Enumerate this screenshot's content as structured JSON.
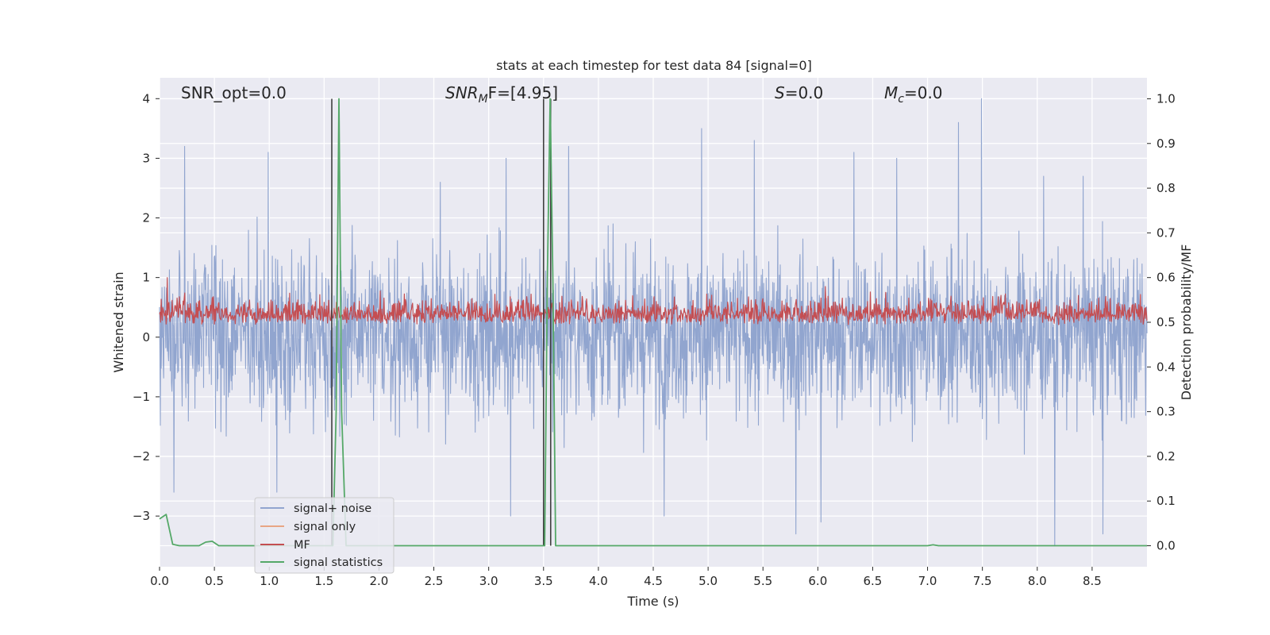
{
  "chart_data": {
    "type": "line",
    "title": "stats at each timestep for test data 84 [signal=0]",
    "xlabel": "Time (s)",
    "ylabel": "Whitened strain",
    "ylabel_right": "Detection probability/MF",
    "xlim": [
      0.0,
      9.0
    ],
    "ylim": [
      -3.85,
      4.35
    ],
    "ylim_right": [
      -0.047,
      1.047
    ],
    "grid": true,
    "legend_position": "lower left",
    "xticks": [
      0.0,
      0.5,
      1.0,
      1.5,
      2.0,
      2.5,
      3.0,
      3.5,
      4.0,
      4.5,
      5.0,
      5.5,
      6.0,
      6.5,
      7.0,
      7.5,
      8.0,
      8.5
    ],
    "xtick_labels": [
      "0.0",
      "0.5",
      "1.0",
      "1.5",
      "2.0",
      "2.5",
      "3.0",
      "3.5",
      "4.0",
      "4.5",
      "5.0",
      "5.5",
      "6.0",
      "6.5",
      "7.0",
      "7.5",
      "8.0",
      "8.5"
    ],
    "yticks_left": [
      4,
      3,
      2,
      1,
      0,
      -1,
      -2,
      -3
    ],
    "ytick_labels_left": [
      "4",
      "3",
      "2",
      "1",
      "0",
      "−1",
      "−2",
      "−3"
    ],
    "yticks_right": [
      1.0,
      0.9,
      0.8,
      0.7,
      0.6,
      0.5,
      0.4,
      0.3,
      0.2,
      0.1,
      0.0
    ],
    "ytick_labels_right": [
      "1.0",
      "0.9",
      "0.8",
      "0.7",
      "0.6",
      "0.5",
      "0.4",
      "0.3",
      "0.2",
      "0.1",
      "0.0"
    ],
    "annotations": {
      "snr_opt": "SNR_opt=0.0",
      "snr_mf_base": "SNR",
      "snr_mf_sub": "M",
      "snr_mf_rest": "F=[4.95]",
      "s_label": "S",
      "s_value": "=0.0",
      "mc_base": "M",
      "mc_sub": "c",
      "mc_value": "=0.0"
    },
    "series": [
      {
        "name": "signal+ noise",
        "color": "#91a5cf",
        "axis": "left",
        "description_values": {
          "min": -3.5,
          "max": 4.0,
          "typical_abs": 1.3
        },
        "peaks": [
          [
            0.23,
            3.2
          ],
          [
            0.99,
            3.1
          ],
          [
            2.56,
            2.6
          ],
          [
            3.16,
            3.0
          ],
          [
            3.73,
            3.2
          ],
          [
            4.94,
            3.5
          ],
          [
            5.42,
            3.3
          ],
          [
            6.33,
            3.1
          ],
          [
            6.72,
            3.0
          ],
          [
            7.28,
            3.6
          ],
          [
            7.49,
            4.0
          ],
          [
            8.06,
            2.7
          ],
          [
            8.42,
            2.7
          ]
        ],
        "troughs": [
          [
            0.13,
            -2.6
          ],
          [
            1.07,
            -2.6
          ],
          [
            3.2,
            -3.0
          ],
          [
            4.6,
            -3.0
          ],
          [
            5.8,
            -3.3
          ],
          [
            6.03,
            -3.1
          ],
          [
            8.16,
            -3.5
          ],
          [
            8.6,
            -3.3
          ]
        ]
      },
      {
        "name": "signal only",
        "color": "#e8a584",
        "axis": "left",
        "values": []
      },
      {
        "name": "MF",
        "color": "#c44e52",
        "axis": "right",
        "description_values": {
          "baseline": 0.5,
          "low": 0.48,
          "high": 0.58
        },
        "peaks": [
          [
            0.07,
            0.6
          ],
          [
            6.07,
            0.58
          ]
        ]
      },
      {
        "name": "signal statistics",
        "color": "#55a868",
        "axis": "right",
        "x": [
          0.0,
          0.06,
          0.12,
          0.18,
          0.36,
          0.42,
          0.48,
          0.54,
          1.55,
          1.58,
          1.61,
          1.635,
          1.66,
          1.7,
          3.49,
          3.51,
          3.535,
          3.56,
          3.585,
          3.61,
          3.64,
          7.0,
          7.05,
          7.1,
          9.0
        ],
        "y": [
          0.06,
          0.07,
          0.003,
          0.0,
          0.0,
          0.008,
          0.01,
          0.0,
          0.0,
          0.0,
          0.3,
          1.0,
          0.3,
          0.0,
          0.0,
          0.0,
          0.6,
          1.0,
          0.6,
          0.0,
          0.0,
          0.0,
          0.002,
          0.0,
          0.0
        ]
      }
    ],
    "vertical_lines": [
      {
        "x": 1.57,
        "color": "#404040"
      },
      {
        "x": 3.5,
        "color": "#404040"
      },
      {
        "x": 3.565,
        "color": "#404040"
      }
    ]
  }
}
